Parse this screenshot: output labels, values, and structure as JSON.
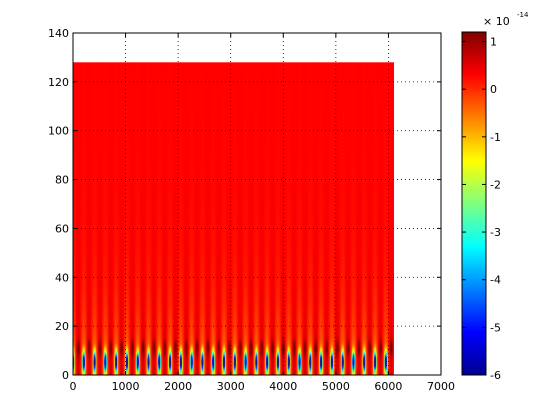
{
  "chart_data": {
    "type": "heatmap",
    "title": "",
    "xlabel": "",
    "ylabel": "",
    "xlim": [
      0,
      7000
    ],
    "ylim": [
      0,
      140
    ],
    "x_ticks": [
      0,
      1000,
      2000,
      3000,
      4000,
      5000,
      6000,
      7000
    ],
    "y_ticks": [
      0,
      20,
      40,
      60,
      80,
      100,
      120,
      140
    ],
    "grid": true,
    "data_extent": {
      "x": [
        0,
        6100
      ],
      "y": [
        0,
        128
      ]
    },
    "pattern": {
      "description_values": "wavelet-like scalogram: near-uniform high values at large y, periodic low-value blobs at small y",
      "period_x": 205,
      "low_band_center_y": 5.5,
      "low_band_halfwidth_y": 4,
      "min_value_at_blob": -6,
      "background_value": 0.3
    },
    "colorbar": {
      "min": -6,
      "max": 1.2,
      "ticks": [
        1,
        0,
        -1,
        -2,
        -3,
        -4,
        -5,
        -6
      ],
      "exponent_label": "× 10",
      "exponent": "-14",
      "colormap": "jet"
    }
  }
}
